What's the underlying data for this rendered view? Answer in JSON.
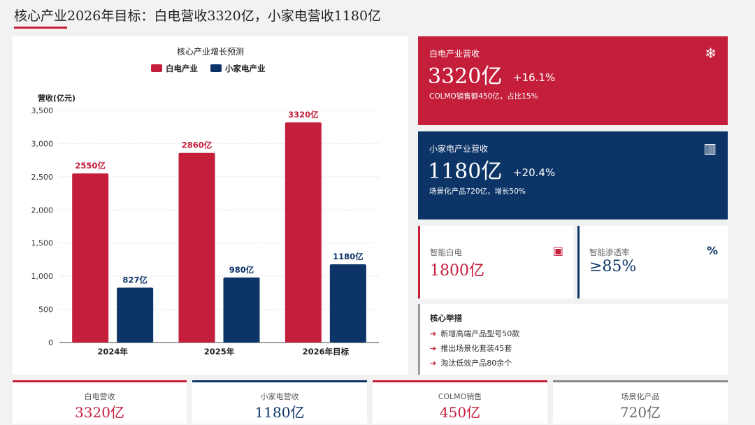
{
  "page": {
    "title": "核心产业2026年目标：白电营收3320亿，小家电营收1180亿"
  },
  "chart_data": {
    "type": "bar",
    "title": "核心产业增长预测",
    "ylabel": "营收(亿元)",
    "categories": [
      "2024年",
      "2025年",
      "2026年目标"
    ],
    "series": [
      {
        "name": "白电产业",
        "color": "#c41e3a",
        "values": [
          2550,
          2860,
          3320
        ],
        "labels": [
          "2550亿",
          "2860亿",
          "3320亿"
        ]
      },
      {
        "name": "小家电产业",
        "color": "#0c3466",
        "values": [
          827,
          980,
          1180
        ],
        "labels": [
          "827亿",
          "980亿",
          "1180亿"
        ]
      }
    ],
    "ylim": [
      0,
      3500
    ],
    "yticks": [
      0,
      500,
      1000,
      1500,
      2000,
      2500,
      3000,
      3500
    ],
    "ytick_labels": [
      "0",
      "500",
      "1,000",
      "1,500",
      "2,000",
      "2,500",
      "3,000",
      "3,500"
    ],
    "grid": true,
    "legend": "top-center"
  },
  "cards": {
    "white": {
      "label": "白电产业营收",
      "value": "3320亿",
      "growth": "+16.1%",
      "note": "COLMO销售额450亿，占比15%",
      "icon": "snowflake-icon",
      "icon_glyph": "❄"
    },
    "small": {
      "label": "小家电产业营收",
      "value": "1180亿",
      "growth": "+20.4%",
      "note": "场景化产品720亿，增长50%",
      "icon": "coffee-maker-icon",
      "icon_glyph": "▥"
    }
  },
  "mini_cards": {
    "smart": {
      "label": "智能白电",
      "value": "1800亿",
      "icon": "chip-icon",
      "icon_glyph": "▣"
    },
    "penetration": {
      "label": "智能渗透率",
      "value": "≥85%",
      "icon": "percent-icon",
      "icon_glyph": "%"
    }
  },
  "measures": {
    "title": "核心举措",
    "arrow": "➔",
    "items": [
      "新增高端产品型号50款",
      "推出场景化套装45套",
      "淘汰低效产品80余个"
    ]
  },
  "kpis": [
    {
      "label": "白电营收",
      "value": "3320亿"
    },
    {
      "label": "小家电营收",
      "value": "1180亿"
    },
    {
      "label": "COLMO销售",
      "value": "450亿"
    },
    {
      "label": "场景化产品",
      "value": "720亿"
    }
  ],
  "colors": {
    "accent_red": "#c41e3a",
    "accent_navy": "#0c3466",
    "background": "#f2f2f2"
  }
}
